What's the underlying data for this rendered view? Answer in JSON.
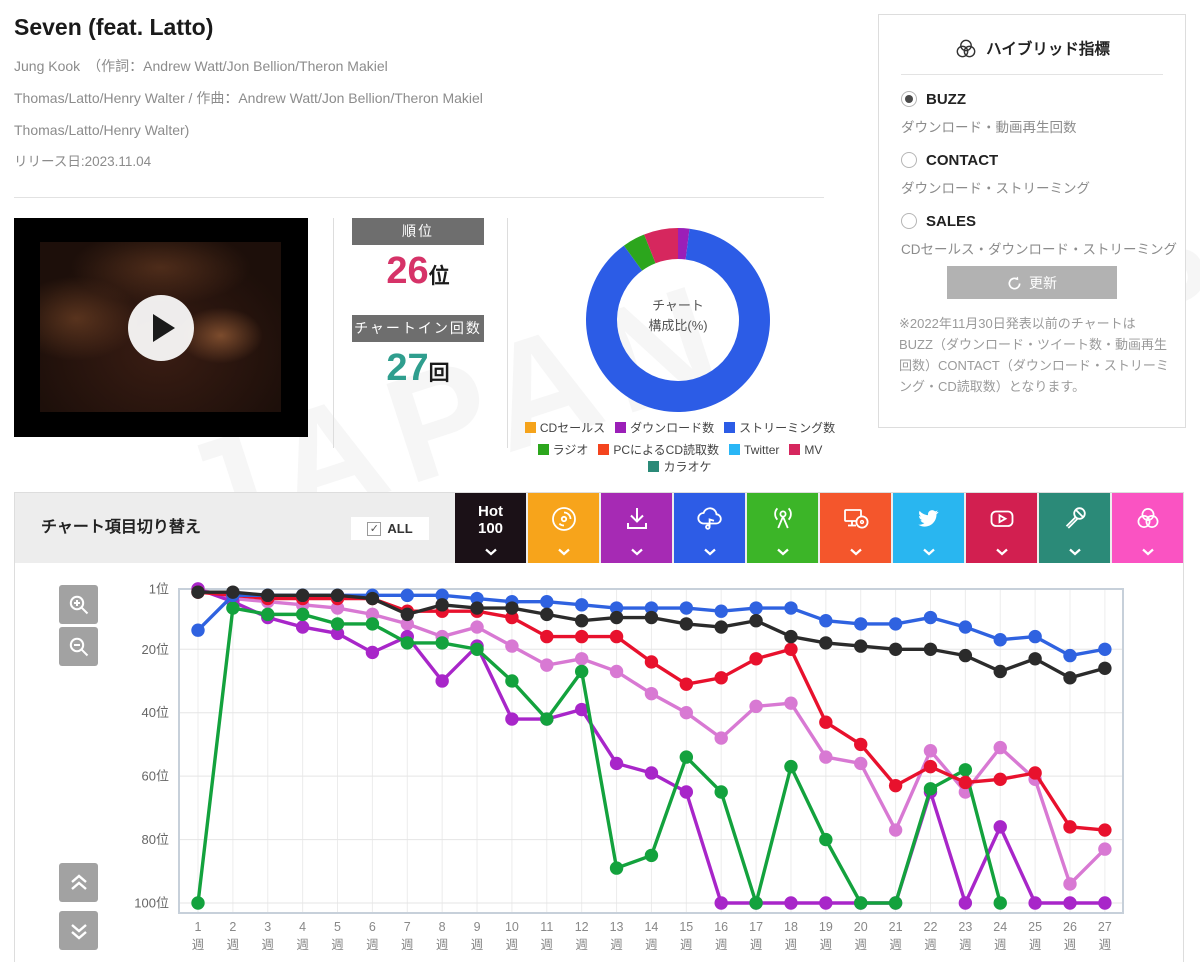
{
  "watermark": "JAPAN",
  "song": {
    "title": "Seven (feat. Latto)",
    "credits": [
      "Jung Kook　（作詞：Andrew Watt/Jon Bellion/Theron Makiel",
      "Thomas/Latto/Henry Walter / 作曲：Andrew Watt/Jon Bellion/Theron Makiel",
      "Thomas/Latto/Henry Walter)"
    ],
    "release": "リリース日:2023.11.04"
  },
  "stats": {
    "rank_label": "順位",
    "rank_value": "26",
    "rank_unit": "位",
    "chartin_label": "チャートイン回数",
    "chartin_value": "27",
    "chartin_unit": "回"
  },
  "donut_center": [
    "チャート",
    "構成比(%)"
  ],
  "hybrid_panel": {
    "title": "ハイブリッド指標",
    "options": [
      {
        "label": "BUZZ",
        "desc": "ダウンロード・動画再生回数",
        "selected": true
      },
      {
        "label": "CONTACT",
        "desc": "ダウンロード・ストリーミング",
        "selected": false
      },
      {
        "label": "SALES",
        "desc": "CDセールス・ダウンロード・ストリーミング",
        "selected": false
      }
    ],
    "refresh_label": "更新",
    "note": "※2022年11月30日発表以前のチャートはBUZZ（ダウンロード・ツイート数・動画再生回数）CONTACT（ダウンロード・ストリーミング・CD読取数）となります。"
  },
  "chart_switcher": {
    "title": "チャート項目切り替え",
    "all_label": "ALL",
    "all_checked": true,
    "buttons": [
      {
        "name": "hot100",
        "label": "Hot 100",
        "color": "#1b1117",
        "icon": "hot100"
      },
      {
        "name": "cd-sales",
        "label": "CDセールス",
        "color": "#f7a41b",
        "icon": "disc"
      },
      {
        "name": "download",
        "label": "ダウンロード数",
        "color": "#a62ab4",
        "icon": "download"
      },
      {
        "name": "streaming",
        "label": "ストリーミング数",
        "color": "#2d5ce6",
        "icon": "cloud-music"
      },
      {
        "name": "radio",
        "label": "ラジオ",
        "color": "#3cb528",
        "icon": "antenna"
      },
      {
        "name": "pc-cd",
        "label": "PCによるCD読取数",
        "color": "#f4562c",
        "icon": "monitor-disc"
      },
      {
        "name": "twitter",
        "label": "Twitter",
        "color": "#29b6f0",
        "icon": "twitter"
      },
      {
        "name": "mv",
        "label": "MV",
        "color": "#d21f50",
        "icon": "play"
      },
      {
        "name": "karaoke",
        "label": "カラオケ",
        "color": "#2b8a78",
        "icon": "microphone"
      },
      {
        "name": "hybrid",
        "label": "ハイブリッド",
        "color": "#fa53c2",
        "icon": "venn"
      }
    ]
  },
  "chart_data": [
    {
      "type": "pie",
      "title": "チャート構成比(%)",
      "labels": [
        "CDセールス",
        "ダウンロード数",
        "ストリーミング数",
        "ラジオ",
        "PCによるCD読取数",
        "Twitter",
        "MV",
        "カラオケ"
      ],
      "values": [
        0,
        2,
        88,
        4,
        0,
        0,
        6,
        0
      ],
      "colors": [
        "#f5a31b",
        "#9b1fb8",
        "#2c5ce6",
        "#2ca61d",
        "#f4441e",
        "#29b6f6",
        "#d6275e",
        "#2b8a78"
      ],
      "legend_rows": [
        [
          0,
          1,
          2
        ],
        [
          3,
          4,
          5,
          6,
          7
        ]
      ]
    },
    {
      "type": "line",
      "title": "週別チャート推移",
      "x_weeks": [
        1,
        2,
        3,
        4,
        5,
        6,
        7,
        8,
        9,
        10,
        11,
        12,
        13,
        14,
        15,
        16,
        17,
        18,
        19,
        20,
        21,
        22,
        23,
        24,
        25,
        26,
        27
      ],
      "x_suffix": "週",
      "y_ticks": [
        1,
        20,
        40,
        60,
        80,
        100
      ],
      "y_tick_suffix": "位",
      "ylim_reversed": [
        1,
        100
      ],
      "grid": true,
      "series": [
        {
          "name": "ハイブリッド",
          "color": "#d879d3",
          "values": [
            1,
            4,
            5,
            6,
            7,
            9,
            12,
            16,
            13,
            19,
            25,
            23,
            27,
            34,
            40,
            48,
            38,
            37,
            54,
            56,
            77,
            52,
            65,
            51,
            61,
            94,
            83
          ]
        },
        {
          "name": "ダウンロード数",
          "color": "#a826c9",
          "values": [
            1,
            5,
            10,
            13,
            15,
            21,
            16,
            30,
            19,
            42,
            42,
            39,
            56,
            59,
            65,
            100,
            100,
            100,
            100,
            100,
            100,
            65,
            100,
            76,
            100,
            100,
            100
          ]
        },
        {
          "name": "ラジオ",
          "color": "#13a23d",
          "values": [
            100,
            7,
            9,
            9,
            12,
            12,
            18,
            18,
            20,
            30,
            42,
            27,
            89,
            85,
            54,
            65,
            100,
            57,
            80,
            100,
            100,
            64,
            58,
            100,
            null,
            null,
            null
          ]
        },
        {
          "name": "MV",
          "color": "#e8112d",
          "values": [
            2,
            3,
            4,
            4,
            4,
            4,
            8,
            8,
            8,
            10,
            16,
            16,
            16,
            24,
            31,
            29,
            23,
            20,
            43,
            50,
            63,
            57,
            62,
            61,
            59,
            76,
            77
          ]
        },
        {
          "name": "ストリーミング数",
          "color": "#2f62e0",
          "values": [
            14,
            3,
            3,
            3,
            3,
            3,
            3,
            3,
            4,
            5,
            5,
            6,
            7,
            7,
            7,
            8,
            7,
            7,
            11,
            12,
            12,
            10,
            13,
            17,
            16,
            22,
            20
          ]
        },
        {
          "name": "Hot 100",
          "color": "#2b2b2b",
          "values": [
            2,
            2,
            3,
            3,
            3,
            4,
            9,
            6,
            7,
            7,
            9,
            11,
            10,
            10,
            12,
            13,
            11,
            16,
            18,
            19,
            20,
            20,
            22,
            27,
            23,
            29,
            26
          ]
        }
      ]
    }
  ]
}
